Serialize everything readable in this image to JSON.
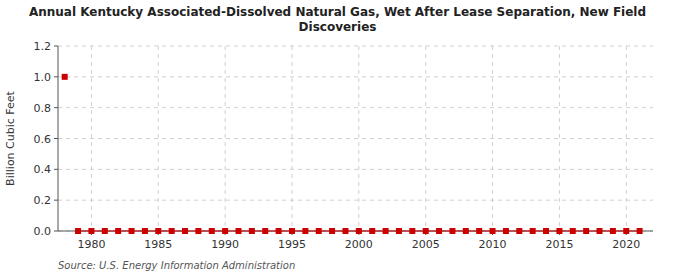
{
  "chart_data": {
    "type": "scatter",
    "title": "Annual Kentucky Associated-Dissolved Natural Gas, Wet After Lease Separation, New Field\nDiscoveries",
    "ylabel": "Billion Cubic Feet",
    "source": "Source: U.S. Energy Information Administration",
    "x": [
      1978,
      1979,
      1980,
      1981,
      1982,
      1983,
      1984,
      1985,
      1986,
      1987,
      1988,
      1989,
      1990,
      1991,
      1992,
      1993,
      1994,
      1995,
      1996,
      1997,
      1998,
      1999,
      2000,
      2001,
      2002,
      2003,
      2004,
      2005,
      2006,
      2007,
      2008,
      2009,
      2010,
      2011,
      2012,
      2013,
      2014,
      2015,
      2016,
      2017,
      2018,
      2019,
      2020,
      2021
    ],
    "series": [
      {
        "type": "scatter",
        "marker": "square",
        "color": "#cc0000",
        "values": [
          1.0,
          0.0,
          0.0,
          0.0,
          0.0,
          0.0,
          0.0,
          0.0,
          0.0,
          0.0,
          0.0,
          0.0,
          0.0,
          0.0,
          0.0,
          0.0,
          0.0,
          0.0,
          0.0,
          0.0,
          0.0,
          0.0,
          0.0,
          0.0,
          0.0,
          0.0,
          0.0,
          0.0,
          0.0,
          0.0,
          0.0,
          0.0,
          0.0,
          0.0,
          0.0,
          0.0,
          0.0,
          0.0,
          0.0,
          0.0,
          0.0,
          0.0,
          0.0,
          0.0
        ]
      },
      {
        "type": "line",
        "color": "#cc0000",
        "values": [
          null,
          0.0,
          0.0,
          0.0,
          0.0,
          0.0,
          0.0,
          0.0,
          0.0,
          0.0,
          0.0,
          0.0,
          0.0,
          0.0,
          0.0,
          0.0,
          0.0,
          0.0,
          0.0,
          0.0,
          0.0,
          0.0,
          0.0,
          0.0,
          0.0,
          0.0,
          0.0,
          0.0,
          0.0,
          0.0,
          0.0,
          0.0,
          0.0,
          0.0,
          0.0,
          0.0,
          0.0,
          0.0,
          0.0,
          0.0,
          0.0,
          0.0,
          0.0,
          0.0
        ]
      }
    ],
    "xlim": [
      1977.5,
      2022
    ],
    "ylim": [
      0,
      1.2
    ],
    "xticks": [
      1980,
      1985,
      1990,
      1995,
      2000,
      2005,
      2010,
      2015,
      2020
    ],
    "yticks": [
      {
        "value": 0.0,
        "label": "0.0"
      },
      0.2,
      0.4,
      0.6,
      0.8,
      {
        "value": 1.0,
        "label": "1.0"
      },
      1.2
    ],
    "grid": true
  }
}
